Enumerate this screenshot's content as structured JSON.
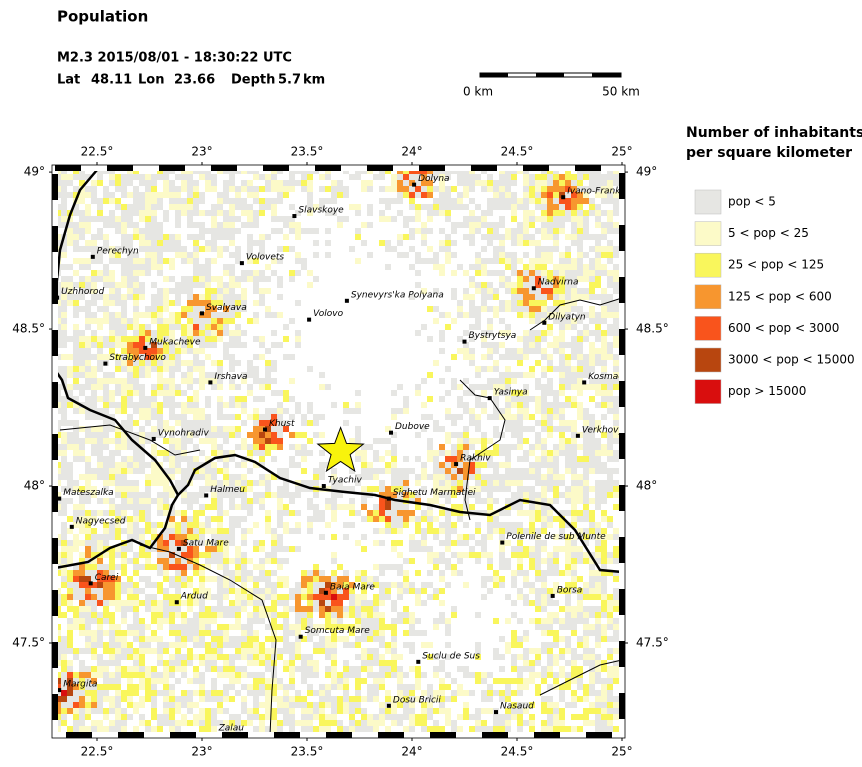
{
  "title": "Population",
  "event": {
    "summary": "M2.3  2015/08/01 - 18:30:22 UTC",
    "lat_label": "Lat",
    "lat": 48.11,
    "lon_label": "Lon",
    "lon": 23.66,
    "depth_label": "Depth",
    "depth": 5.7,
    "depth_unit": "km"
  },
  "scale_bar": {
    "start": "0 km",
    "end": "50 km"
  },
  "map": {
    "lonlim": [
      22.3,
      25.0
    ],
    "latlim": [
      47.207,
      49.013
    ],
    "lonticks": [
      {
        "value": 22.5,
        "label": "22.5°"
      },
      {
        "value": 23,
        "label": "23°"
      },
      {
        "value": 23.5,
        "label": "23.5°"
      },
      {
        "value": 24,
        "label": "24°"
      },
      {
        "value": 24.5,
        "label": "24.5°"
      },
      {
        "value": 25,
        "label": "25°"
      }
    ],
    "latticks": [
      {
        "value": 49,
        "label": "49°"
      },
      {
        "value": 48.5,
        "label": "48.5°"
      },
      {
        "value": 48,
        "label": "48°"
      },
      {
        "value": 47.5,
        "label": "47.5°"
      }
    ],
    "cities": [
      {
        "name": "Dolyna",
        "lon": 24.01,
        "lat": 48.96
      },
      {
        "name": "Ivano-Franki",
        "lon": 24.72,
        "lat": 48.92
      },
      {
        "name": "Slavskoye",
        "lon": 23.44,
        "lat": 48.86
      },
      {
        "name": "Perechyn",
        "lon": 22.48,
        "lat": 48.73
      },
      {
        "name": "Volovets",
        "lon": 23.19,
        "lat": 48.71
      },
      {
        "name": "Uzhhorod",
        "lon": 22.31,
        "lat": 48.6
      },
      {
        "name": "Nadvirna",
        "lon": 24.58,
        "lat": 48.63
      },
      {
        "name": "Synevyrs'ka Polyana",
        "lon": 23.69,
        "lat": 48.59
      },
      {
        "name": "Svalyava",
        "lon": 23.0,
        "lat": 48.55
      },
      {
        "name": "Volovo",
        "lon": 23.51,
        "lat": 48.53
      },
      {
        "name": "Dilyatyn",
        "lon": 24.63,
        "lat": 48.52
      },
      {
        "name": "Bystrytsya",
        "lon": 24.25,
        "lat": 48.46
      },
      {
        "name": "Mukacheve",
        "lon": 22.73,
        "lat": 48.44
      },
      {
        "name": "Strabychovo",
        "lon": 22.54,
        "lat": 48.39
      },
      {
        "name": "Irshava",
        "lon": 23.04,
        "lat": 48.33
      },
      {
        "name": "Kosmac",
        "lon": 24.82,
        "lat": 48.33
      },
      {
        "name": "Yasinya",
        "lon": 24.37,
        "lat": 48.28
      },
      {
        "name": "Khust",
        "lon": 23.3,
        "lat": 48.18
      },
      {
        "name": "Dubove",
        "lon": 23.9,
        "lat": 48.17
      },
      {
        "name": "Verkhovy",
        "lon": 24.79,
        "lat": 48.16
      },
      {
        "name": "Vynohradiv",
        "lon": 22.77,
        "lat": 48.15
      },
      {
        "name": "Rakhiv",
        "lon": 24.21,
        "lat": 48.07
      },
      {
        "name": "Tyachiv",
        "lon": 23.58,
        "lat": 48.0
      },
      {
        "name": "Halmeu",
        "lon": 23.02,
        "lat": 47.97
      },
      {
        "name": "Mateszalka",
        "lon": 22.32,
        "lat": 47.96
      },
      {
        "name": "Sighetu Marmatiei",
        "lon": 23.89,
        "lat": 47.96
      },
      {
        "name": "Nagyecsed",
        "lon": 22.38,
        "lat": 47.87
      },
      {
        "name": "Polenile de sub Munte",
        "lon": 24.43,
        "lat": 47.82
      },
      {
        "name": "Satu Mare",
        "lon": 22.89,
        "lat": 47.8
      },
      {
        "name": "Carei",
        "lon": 22.47,
        "lat": 47.69
      },
      {
        "name": "Borsa",
        "lon": 24.67,
        "lat": 47.65
      },
      {
        "name": "Ardud",
        "lon": 22.88,
        "lat": 47.63
      },
      {
        "name": "Baia Mare",
        "lon": 23.59,
        "lat": 47.66
      },
      {
        "name": "Somcuta Mare",
        "lon": 23.47,
        "lat": 47.52
      },
      {
        "name": "Suclu de Sus",
        "lon": 24.03,
        "lat": 47.44
      },
      {
        "name": "Margita",
        "lon": 22.32,
        "lat": 47.35
      },
      {
        "name": "Dosu Bricii",
        "lon": 23.89,
        "lat": 47.3
      },
      {
        "name": "Nasaud",
        "lon": 24.4,
        "lat": 47.28
      },
      {
        "name": "Zalau",
        "lon": 23.06,
        "lat": 47.21
      }
    ]
  },
  "legend": {
    "title": [
      "Number of inhabitants",
      "per square kilometer"
    ],
    "items": [
      {
        "label": "pop < 5",
        "color": "#e6e6e3"
      },
      {
        "label": "5 < pop < 25",
        "color": "#fcfac8"
      },
      {
        "label": "25 < pop < 125",
        "color": "#f9f65c"
      },
      {
        "label": "125 < pop < 600",
        "color": "#f7962f"
      },
      {
        "label": "600 < pop < 3000",
        "color": "#f9541c"
      },
      {
        "label": "3000 < pop < 15000",
        "color": "#b8460f"
      },
      {
        "label": "pop > 15000",
        "color": "#d90e0e"
      }
    ]
  }
}
